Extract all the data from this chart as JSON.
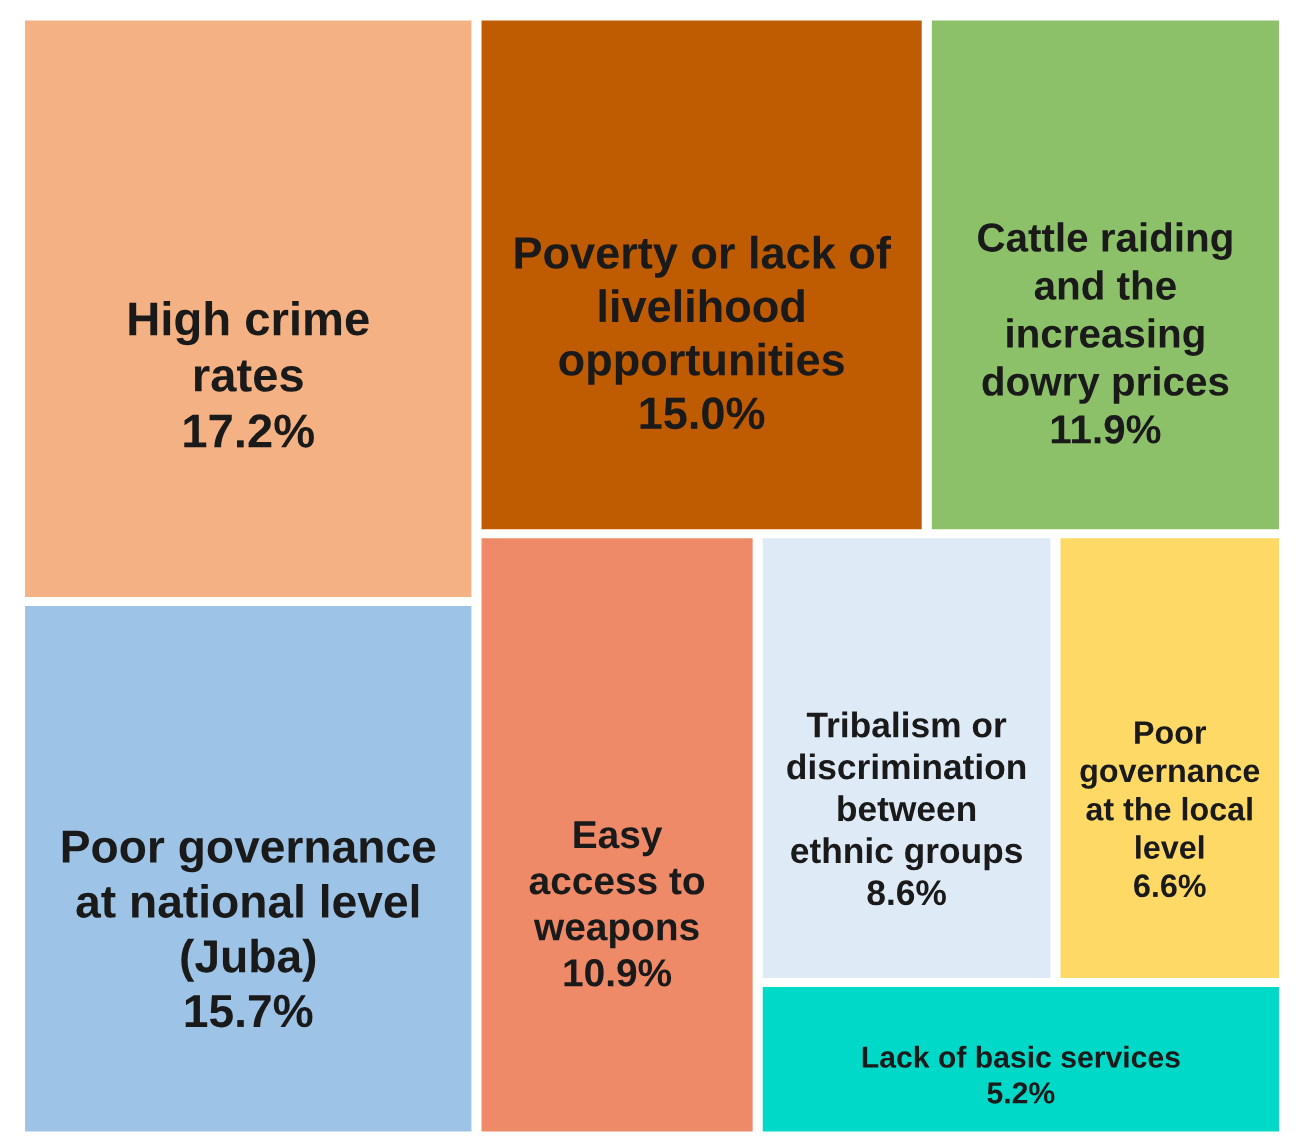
{
  "chart_data": {
    "type": "other",
    "categories": [
      "High crime\nrates",
      "Poor governance\nat national level\n(Juba)",
      "Poverty or lack of\nlivelihood\nopportunities",
      "Cattle raiding\nand the\nincreasing\ndowry prices",
      "Easy\naccess to\nweapons",
      "Tribalism or\ndiscrimination\nbetween\nethnic groups",
      "Poor\ngovernance\nat the local\nlevel",
      "Lack of basic services"
    ],
    "values": [
      17.2,
      15.7,
      15.0,
      11.9,
      10.9,
      8.6,
      6.6,
      5.2
    ],
    "value_labels": [
      "17.2%",
      "15.7%",
      "15.0%",
      "11.9%",
      "10.9%",
      "8.6%",
      "6.6%",
      "5.2%"
    ],
    "colors": [
      "#f4b183",
      "#9dc3e6",
      "#bf5b00",
      "#8cc16a",
      "#ee8a68",
      "#deebf7",
      "#ffd966",
      "#00d9c8"
    ]
  }
}
